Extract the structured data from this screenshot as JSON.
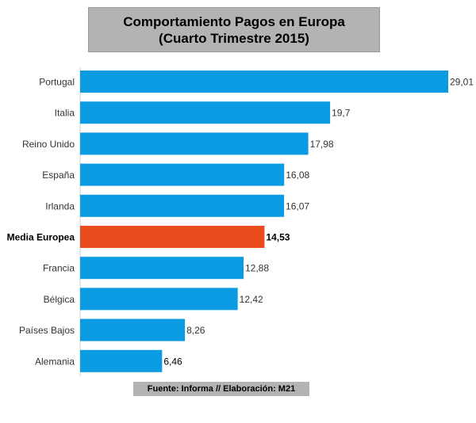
{
  "chart_data": {
    "type": "bar",
    "orientation": "horizontal",
    "title": "Comportamiento Pagos en Europa",
    "subtitle": "(Cuarto Trimestre 2015)",
    "categories": [
      "Portugal",
      "Italia",
      "Reino Unido",
      "España",
      "Irlanda",
      "Media Europea",
      "Francia",
      "Bélgica",
      "Países Bajos",
      "Alemania"
    ],
    "values": [
      29.01,
      19.7,
      17.98,
      16.08,
      16.07,
      14.53,
      12.88,
      12.42,
      8.26,
      6.46
    ],
    "value_labels": [
      "29,01",
      "19,7",
      "17,98",
      "16,08",
      "16,07",
      "14,53",
      "12,88",
      "12,42",
      "8,26",
      "6,46"
    ],
    "highlight_category": "Media Europea",
    "xlim": [
      0,
      29.01
    ],
    "grid": false,
    "colors": {
      "bar": "#0a9be2",
      "highlight": "#ea4d1d"
    }
  },
  "source": "Fuente: Informa // Elaboración: M21"
}
